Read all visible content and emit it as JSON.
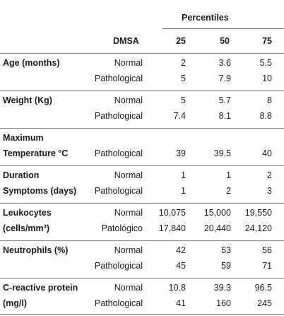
{
  "header": {
    "percentiles_label": "Percentiles",
    "dmsa_label": "DMSA",
    "p25": "25",
    "p50": "50",
    "p75": "75"
  },
  "rows": [
    {
      "name_lines": [
        "Age (months)",
        ""
      ],
      "sub": [
        {
          "dmsa": "Normal",
          "v25": "2",
          "v50": "3.6",
          "v75": "5.5"
        },
        {
          "dmsa": "Pathological",
          "v25": "5",
          "v50": "7.9",
          "v75": "10"
        }
      ]
    },
    {
      "name_lines": [
        "Weight (Kg)",
        ""
      ],
      "sub": [
        {
          "dmsa": "Normal",
          "v25": "5",
          "v50": "5.7",
          "v75": "8"
        },
        {
          "dmsa": "Pathological",
          "v25": "7.4",
          "v50": "8.1",
          "v75": "8.8"
        }
      ]
    },
    {
      "name_lines": [
        "Maximum",
        "Temperature °C"
      ],
      "sub": [
        {
          "dmsa": "",
          "v25": "",
          "v50": "",
          "v75": ""
        },
        {
          "dmsa": "Pathological",
          "v25": "39",
          "v50": "39.5",
          "v75": "40"
        }
      ]
    },
    {
      "name_lines": [
        "Duration",
        "Symptoms (days)"
      ],
      "sub": [
        {
          "dmsa": "Normal",
          "v25": "1",
          "v50": "1",
          "v75": "2"
        },
        {
          "dmsa": "Pathological",
          "v25": "1",
          "v50": "2",
          "v75": "3"
        }
      ]
    },
    {
      "name_lines": [
        "Leukocytes",
        "(cells/mm³)"
      ],
      "sub": [
        {
          "dmsa": "Normal",
          "v25": "10,075",
          "v50": "15,000",
          "v75": "19,550"
        },
        {
          "dmsa": "Patológico",
          "v25": "17,840",
          "v50": "20,440",
          "v75": "24,120"
        }
      ]
    },
    {
      "name_lines": [
        "Neutrophils (%)",
        ""
      ],
      "sub": [
        {
          "dmsa": "Normal",
          "v25": "42",
          "v50": "53",
          "v75": "56"
        },
        {
          "dmsa": "Pathological",
          "v25": "45",
          "v50": "59",
          "v75": "71"
        }
      ]
    },
    {
      "name_lines": [
        "C-reactive protein",
        "(mg/l)"
      ],
      "sub": [
        {
          "dmsa": "Normal",
          "v25": "10.8",
          "v50": "39.3",
          "v75": "96.5"
        },
        {
          "dmsa": "Pathological",
          "v25": "41",
          "v50": "160",
          "v75": "245"
        }
      ]
    }
  ]
}
